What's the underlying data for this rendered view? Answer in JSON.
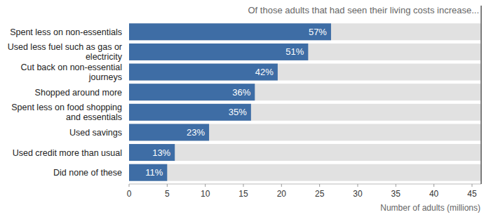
{
  "chart_data": {
    "type": "bar",
    "orientation": "horizontal",
    "subtitle": "Of those adults that had seen their living costs increase...",
    "x_label": "Number of adults (millions)",
    "categories": [
      "Spent less on non-essentials",
      "Used less fuel such as gas or electricity",
      "Cut back on non-essential journeys",
      "Shopped around more",
      "Spent less on food shopping and essentials",
      "Used savings",
      "Used credit more than usual",
      "Did none of these"
    ],
    "values": [
      26.5,
      23.5,
      19.5,
      16.5,
      16,
      10.5,
      6,
      5
    ],
    "share_labels": [
      "57%",
      "51%",
      "42%",
      "36%",
      "35%",
      "23%",
      "13%",
      "11%"
    ],
    "color": "#3e6da5",
    "xlim": [
      0,
      46.2
    ],
    "xticks": [
      0,
      5,
      10,
      15,
      20,
      25,
      30,
      35,
      40,
      45
    ],
    "grid": false
  }
}
